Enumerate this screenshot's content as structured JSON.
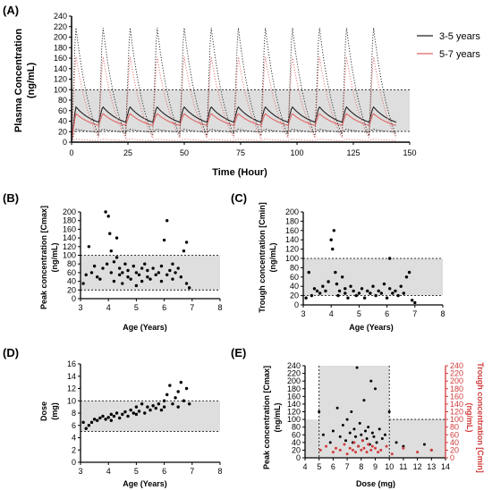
{
  "chart_data": [
    {
      "panel": "(A)",
      "type": "line",
      "xlabel": "Time (Hour)",
      "ylabel": "Plasma Concentration (ng/mL)",
      "xlim": [
        0,
        150
      ],
      "ylim": [
        0,
        240
      ],
      "xticks": [
        0,
        25,
        50,
        75,
        100,
        125,
        150
      ],
      "yticks": [
        0,
        20,
        40,
        60,
        80,
        100,
        120,
        140,
        160,
        180,
        200,
        220,
        240
      ],
      "shaded_range": [
        20,
        100
      ],
      "dosing_interval_hours": 12,
      "doses": 12,
      "series": [
        {
          "name": "3-5 years",
          "color": "#222222",
          "style": "solid",
          "trough": 38,
          "peak": 68
        },
        {
          "name": "5-7 years",
          "color": "#e06666",
          "style": "solid",
          "trough": 32,
          "peak": 55
        },
        {
          "name": "",
          "color": "#222222",
          "style": "dotted",
          "trough": 12,
          "peak": 225
        },
        {
          "name": "",
          "color": "#e06666",
          "style": "dotted",
          "trough": 8,
          "peak": 168
        },
        {
          "name": "",
          "color": "#222222",
          "style": "dotted",
          "trough": 19,
          "peak": 25
        },
        {
          "name": "",
          "color": "#e06666",
          "style": "dotted",
          "trough": 3,
          "peak": 6
        }
      ],
      "legend": "right"
    },
    {
      "panel": "(B)",
      "type": "scatter",
      "xlabel": "Age (Years)",
      "ylabel": "Peak concentration [Cmax] (ng/mL)",
      "xlim": [
        3,
        8
      ],
      "ylim": [
        0,
        200
      ],
      "xticks": [
        3,
        4,
        5,
        6,
        7,
        8
      ],
      "yticks": [
        0,
        20,
        40,
        60,
        80,
        100,
        120,
        140,
        160,
        180,
        200
      ],
      "shaded_range": [
        20,
        100
      ],
      "points": [
        [
          3.1,
          35
        ],
        [
          3.2,
          55
        ],
        [
          3.3,
          120
        ],
        [
          3.4,
          60
        ],
        [
          3.5,
          75
        ],
        [
          3.6,
          50
        ],
        [
          3.7,
          45
        ],
        [
          3.8,
          70
        ],
        [
          3.9,
          200
        ],
        [
          3.95,
          80
        ],
        [
          4.0,
          190
        ],
        [
          4.05,
          150
        ],
        [
          4.1,
          110
        ],
        [
          4.1,
          60
        ],
        [
          4.2,
          85
        ],
        [
          4.2,
          40
        ],
        [
          4.3,
          95
        ],
        [
          4.3,
          140
        ],
        [
          4.4,
          55
        ],
        [
          4.4,
          70
        ],
        [
          4.5,
          60
        ],
        [
          4.5,
          35
        ],
        [
          4.6,
          80
        ],
        [
          4.7,
          50
        ],
        [
          4.7,
          65
        ],
        [
          4.8,
          45
        ],
        [
          4.9,
          75
        ],
        [
          5.0,
          60
        ],
        [
          5.0,
          30
        ],
        [
          5.1,
          55
        ],
        [
          5.2,
          70
        ],
        [
          5.2,
          40
        ],
        [
          5.3,
          80
        ],
        [
          5.4,
          65
        ],
        [
          5.4,
          50
        ],
        [
          5.5,
          45
        ],
        [
          5.6,
          70
        ],
        [
          5.7,
          55
        ],
        [
          5.8,
          60
        ],
        [
          5.9,
          40
        ],
        [
          5.9,
          75
        ],
        [
          6.0,
          135
        ],
        [
          6.1,
          180
        ],
        [
          6.1,
          55
        ],
        [
          6.2,
          65
        ],
        [
          6.3,
          80
        ],
        [
          6.3,
          45
        ],
        [
          6.4,
          60
        ],
        [
          6.5,
          70
        ],
        [
          6.6,
          50
        ],
        [
          6.7,
          110
        ],
        [
          6.8,
          130
        ],
        [
          6.8,
          35
        ],
        [
          6.9,
          25
        ]
      ]
    },
    {
      "panel": "(C)",
      "type": "scatter",
      "xlabel": "Age (Years)",
      "ylabel": "Trough concentration [Cmin] (ng/mL)",
      "xlim": [
        3,
        8
      ],
      "ylim": [
        0,
        200
      ],
      "xticks": [
        3,
        4,
        5,
        6,
        7,
        8
      ],
      "yticks": [
        0,
        20,
        40,
        60,
        80,
        100,
        120,
        140,
        160,
        180,
        200
      ],
      "shaded_range": [
        20,
        100
      ],
      "points": [
        [
          3.1,
          15
        ],
        [
          3.2,
          70
        ],
        [
          3.3,
          20
        ],
        [
          3.4,
          35
        ],
        [
          3.5,
          30
        ],
        [
          3.6,
          25
        ],
        [
          3.7,
          40
        ],
        [
          3.8,
          30
        ],
        [
          3.9,
          50
        ],
        [
          4.0,
          140
        ],
        [
          4.05,
          120
        ],
        [
          4.1,
          160
        ],
        [
          4.15,
          70
        ],
        [
          4.2,
          45
        ],
        [
          4.25,
          20
        ],
        [
          4.3,
          30
        ],
        [
          4.4,
          60
        ],
        [
          4.5,
          25
        ],
        [
          4.5,
          35
        ],
        [
          4.6,
          15
        ],
        [
          4.7,
          40
        ],
        [
          4.8,
          30
        ],
        [
          4.9,
          20
        ],
        [
          5.0,
          25
        ],
        [
          5.1,
          35
        ],
        [
          5.2,
          15
        ],
        [
          5.3,
          30
        ],
        [
          5.4,
          25
        ],
        [
          5.5,
          40
        ],
        [
          5.6,
          20
        ],
        [
          5.7,
          30
        ],
        [
          5.8,
          25
        ],
        [
          5.9,
          45
        ],
        [
          6.0,
          15
        ],
        [
          6.1,
          100
        ],
        [
          6.1,
          35
        ],
        [
          6.2,
          25
        ],
        [
          6.3,
          30
        ],
        [
          6.4,
          20
        ],
        [
          6.5,
          40
        ],
        [
          6.6,
          25
        ],
        [
          6.7,
          60
        ],
        [
          6.8,
          70
        ],
        [
          6.9,
          10
        ],
        [
          7.0,
          5
        ]
      ]
    },
    {
      "panel": "(D)",
      "type": "scatter",
      "xlabel": "Age (Years)",
      "ylabel": "Dose (mg)",
      "xlim": [
        3,
        8
      ],
      "ylim": [
        0,
        16
      ],
      "xticks": [
        3,
        4,
        5,
        6,
        7,
        8
      ],
      "yticks": [
        0,
        2,
        4,
        6,
        8,
        10,
        12,
        14,
        16
      ],
      "shaded_range": [
        5,
        10
      ],
      "points": [
        [
          3.1,
          6.5
        ],
        [
          3.2,
          5.5
        ],
        [
          3.3,
          6.0
        ],
        [
          3.4,
          6.5
        ],
        [
          3.5,
          7.0
        ],
        [
          3.6,
          6.8
        ],
        [
          3.7,
          7.2
        ],
        [
          3.8,
          7.5
        ],
        [
          3.9,
          7.0
        ],
        [
          4.0,
          7.3
        ],
        [
          4.1,
          7.8
        ],
        [
          4.1,
          6.8
        ],
        [
          4.2,
          7.5
        ],
        [
          4.3,
          8.0
        ],
        [
          4.4,
          7.2
        ],
        [
          4.5,
          7.8
        ],
        [
          4.6,
          8.2
        ],
        [
          4.7,
          7.5
        ],
        [
          4.8,
          8.5
        ],
        [
          4.9,
          8.0
        ],
        [
          5.0,
          9.0
        ],
        [
          5.0,
          7.8
        ],
        [
          5.1,
          8.3
        ],
        [
          5.2,
          9.5
        ],
        [
          5.3,
          8.0
        ],
        [
          5.4,
          9.0
        ],
        [
          5.5,
          8.5
        ],
        [
          5.6,
          9.2
        ],
        [
          5.7,
          8.8
        ],
        [
          5.8,
          9.5
        ],
        [
          5.9,
          8.5
        ],
        [
          6.0,
          10.0
        ],
        [
          6.0,
          9.0
        ],
        [
          6.1,
          11.0
        ],
        [
          6.2,
          12.5
        ],
        [
          6.3,
          9.5
        ],
        [
          6.4,
          10.5
        ],
        [
          6.5,
          11.5
        ],
        [
          6.5,
          9.0
        ],
        [
          6.6,
          13.0
        ],
        [
          6.7,
          10.0
        ],
        [
          6.8,
          12.0
        ],
        [
          6.9,
          9.5
        ]
      ]
    },
    {
      "panel": "(E)",
      "type": "scatter",
      "xlabel": "Dose (mg)",
      "ylabel": "Peak concentration [Cmax] (ng/mL)",
      "ylabel_right": "Trough concentration [Cmin] (ng/mL)",
      "xlim": [
        4,
        14
      ],
      "ylim": [
        0,
        240
      ],
      "xticks": [
        4,
        5,
        6,
        7,
        8,
        9,
        10,
        11,
        12,
        13,
        14
      ],
      "yticks": [
        0,
        20,
        40,
        60,
        80,
        100,
        120,
        140,
        160,
        180,
        200,
        220,
        240
      ],
      "shaded_x": [
        5,
        10
      ],
      "shaded_y": [
        0,
        100
      ],
      "series": [
        {
          "name": "Cmax",
          "color": "#000000",
          "points": [
            [
              5.0,
              120
            ],
            [
              5.3,
              60
            ],
            [
              5.8,
              40
            ],
            [
              6.0,
              70
            ],
            [
              6.3,
              130
            ],
            [
              6.5,
              55
            ],
            [
              6.7,
              85
            ],
            [
              6.9,
              45
            ],
            [
              7.0,
              100
            ],
            [
              7.2,
              65
            ],
            [
              7.3,
              120
            ],
            [
              7.4,
              40
            ],
            [
              7.5,
              75
            ],
            [
              7.6,
              55
            ],
            [
              7.7,
              235
            ],
            [
              7.8,
              30
            ],
            [
              7.9,
              90
            ],
            [
              8.0,
              60
            ],
            [
              8.1,
              45
            ],
            [
              8.2,
              150
            ],
            [
              8.3,
              70
            ],
            [
              8.4,
              50
            ],
            [
              8.5,
              80
            ],
            [
              8.6,
              35
            ],
            [
              8.7,
              200
            ],
            [
              8.8,
              65
            ],
            [
              8.9,
              55
            ],
            [
              9.0,
              180
            ],
            [
              9.1,
              40
            ],
            [
              9.3,
              75
            ],
            [
              9.5,
              50
            ],
            [
              9.7,
              60
            ],
            [
              10.0,
              120
            ],
            [
              10.5,
              40
            ],
            [
              11.0,
              30
            ],
            [
              12.5,
              35
            ],
            [
              13.0,
              20
            ]
          ]
        },
        {
          "name": "Cmin",
          "color": "#d23a3a",
          "points": [
            [
              5.1,
              20
            ],
            [
              5.5,
              30
            ],
            [
              6.0,
              15
            ],
            [
              6.2,
              25
            ],
            [
              6.5,
              20
            ],
            [
              6.8,
              35
            ],
            [
              7.0,
              10
            ],
            [
              7.2,
              25
            ],
            [
              7.4,
              20
            ],
            [
              7.5,
              40
            ],
            [
              7.6,
              15
            ],
            [
              7.8,
              30
            ],
            [
              8.0,
              20
            ],
            [
              8.1,
              45
            ],
            [
              8.2,
              25
            ],
            [
              8.4,
              15
            ],
            [
              8.5,
              35
            ],
            [
              8.7,
              20
            ],
            [
              8.8,
              30
            ],
            [
              9.0,
              25
            ],
            [
              9.2,
              15
            ],
            [
              9.4,
              20
            ],
            [
              9.8,
              30
            ],
            [
              10.2,
              10
            ],
            [
              11.0,
              25
            ],
            [
              12.0,
              15
            ],
            [
              13.0,
              20
            ]
          ]
        }
      ]
    }
  ]
}
